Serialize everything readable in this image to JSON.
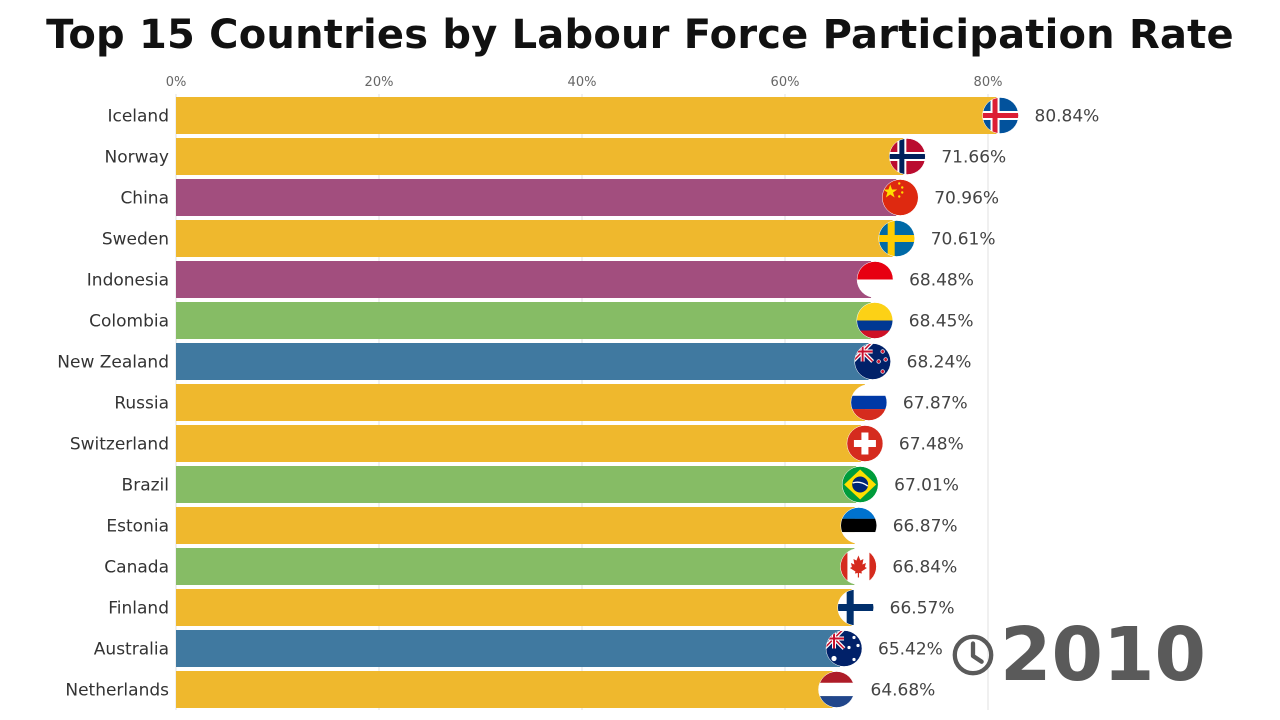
{
  "chart_data": {
    "type": "bar",
    "orientation": "horizontal",
    "title": "Top 15 Countries by Labour Force Participation Rate",
    "xlabel": "",
    "ylabel": "",
    "xlim": [
      0,
      80.84
    ],
    "ticks": [
      {
        "value": 0,
        "label": "0%"
      },
      {
        "value": 20,
        "label": "20%"
      },
      {
        "value": 40,
        "label": "40%"
      },
      {
        "value": 60,
        "label": "60%"
      },
      {
        "value": 80,
        "label": "80%"
      }
    ],
    "grid": true,
    "year": "2010",
    "categories": [
      "Iceland",
      "Norway",
      "China",
      "Sweden",
      "Indonesia",
      "Colombia",
      "New Zealand",
      "Russia",
      "Switzerland",
      "Brazil",
      "Estonia",
      "Canada",
      "Finland",
      "Australia",
      "Netherlands"
    ],
    "values": [
      80.84,
      71.66,
      70.96,
      70.61,
      68.48,
      68.45,
      68.24,
      67.87,
      67.48,
      67.01,
      66.87,
      66.84,
      66.57,
      65.42,
      64.68
    ],
    "value_labels": [
      "80.84%",
      "71.66%",
      "70.96%",
      "70.61%",
      "68.48%",
      "68.45%",
      "68.24%",
      "67.87%",
      "67.48%",
      "67.01%",
      "66.87%",
      "66.84%",
      "66.57%",
      "65.42%",
      "64.68%"
    ],
    "bar_colors": [
      "#efb82d",
      "#efb82d",
      "#a24e7e",
      "#efb82d",
      "#a24e7e",
      "#86bc65",
      "#4079a0",
      "#efb82d",
      "#efb82d",
      "#86bc65",
      "#efb82d",
      "#86bc65",
      "#efb82d",
      "#4079a0",
      "#efb82d"
    ],
    "flags": [
      "iceland-flag-icon",
      "norway-flag-icon",
      "china-flag-icon",
      "sweden-flag-icon",
      "indonesia-flag-icon",
      "colombia-flag-icon",
      "new-zealand-flag-icon",
      "russia-flag-icon",
      "switzerland-flag-icon",
      "brazil-flag-icon",
      "estonia-flag-icon",
      "canada-flag-icon",
      "finland-flag-icon",
      "australia-flag-icon",
      "netherlands-flag-icon"
    ]
  }
}
